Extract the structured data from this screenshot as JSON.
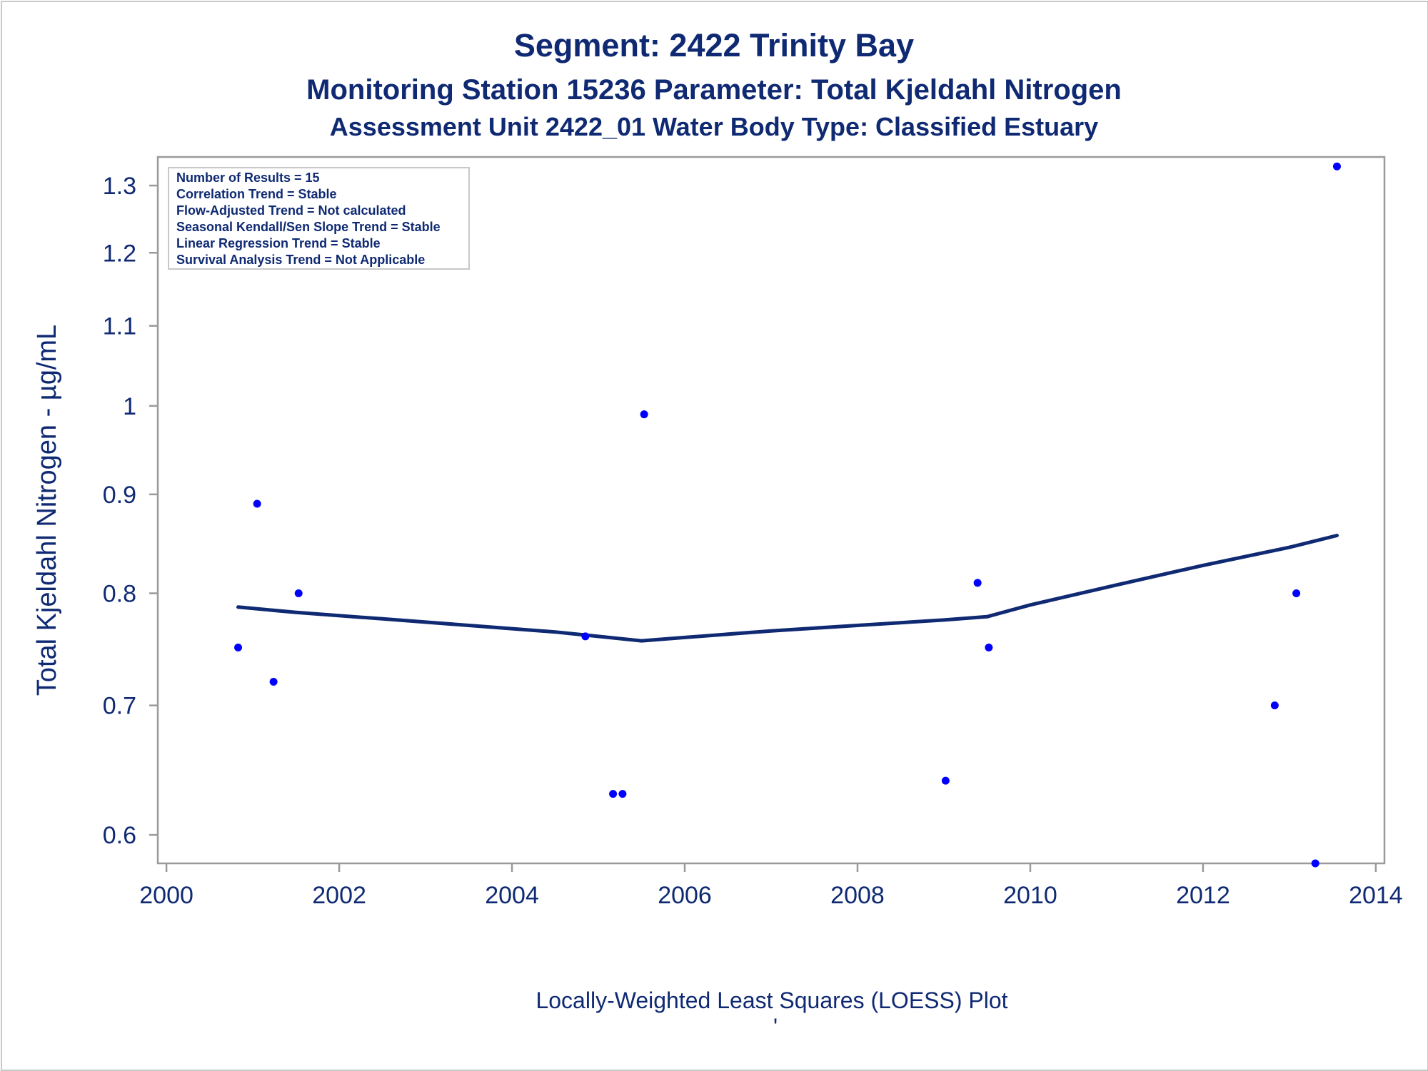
{
  "colors": {
    "text": "#0f2a73",
    "marker": "#0000ff",
    "loess_line": "#0f2a73",
    "axis": "#9a9a9a"
  },
  "chart_data": {
    "type": "scatter",
    "title": "Segment: 2422  Trinity Bay",
    "subtitle": "Monitoring Station 15236 Parameter: Total Kjeldahl Nitrogen",
    "subtitle2": "Assessment Unit 2422_01   Water Body Type: Classified Estuary",
    "xlabel": "",
    "ylabel": "Total Kjeldahl Nitrogen -  µg/mL",
    "footnote": "Locally-Weighted Least Squares (LOESS) Plot",
    "footnote2": "'",
    "y_scale": "log",
    "xlim": [
      1999.9,
      2014.1
    ],
    "ylim": [
      0.58,
      1.345
    ],
    "x_ticks": [
      2000,
      2002,
      2004,
      2006,
      2008,
      2010,
      2012,
      2014
    ],
    "x_tick_labels": [
      "2000",
      "2002",
      "2004",
      "2006",
      "2008",
      "2010",
      "2012",
      "2014"
    ],
    "y_ticks": [
      0.6,
      0.7,
      0.8,
      0.9,
      1.0,
      1.1,
      1.2,
      1.3
    ],
    "y_tick_labels": [
      "0.6",
      "0.7",
      "0.8",
      "0.9",
      "1",
      "1.1",
      "1.2",
      "1.3"
    ],
    "grid": false,
    "stats_box": {
      "placement": "top-left",
      "lines": [
        "Number of Results = 15",
        "Correlation Trend = Stable",
        "Flow-Adjusted Trend = Not calculated",
        "Seasonal Kendall/Sen Slope Trend = Stable",
        "Linear Regression Trend = Stable",
        "Survival Analysis Trend = Not Applicable"
      ]
    },
    "series": [
      {
        "kind": "points",
        "x": [
          2000.83,
          2001.05,
          2001.24,
          2001.53,
          2004.85,
          2005.17,
          2005.28,
          2005.53,
          2009.02,
          2009.39,
          2009.52,
          2012.83,
          2013.08,
          2013.3,
          2013.55
        ],
        "y": [
          0.75,
          0.89,
          0.72,
          0.8,
          0.76,
          0.63,
          0.63,
          0.99,
          0.64,
          0.81,
          0.75,
          0.7,
          0.8,
          0.58,
          1.33
        ]
      },
      {
        "kind": "line",
        "x": [
          2000.83,
          2001.5,
          2002.5,
          2003.5,
          2004.5,
          2005.0,
          2005.5,
          2006.0,
          2007.0,
          2008.0,
          2009.0,
          2009.5,
          2010.0,
          2011.0,
          2012.0,
          2013.0,
          2013.55
        ],
        "y": [
          0.787,
          0.782,
          0.776,
          0.77,
          0.764,
          0.76,
          0.756,
          0.759,
          0.765,
          0.77,
          0.775,
          0.778,
          0.789,
          0.808,
          0.827,
          0.845,
          0.857
        ]
      }
    ]
  }
}
